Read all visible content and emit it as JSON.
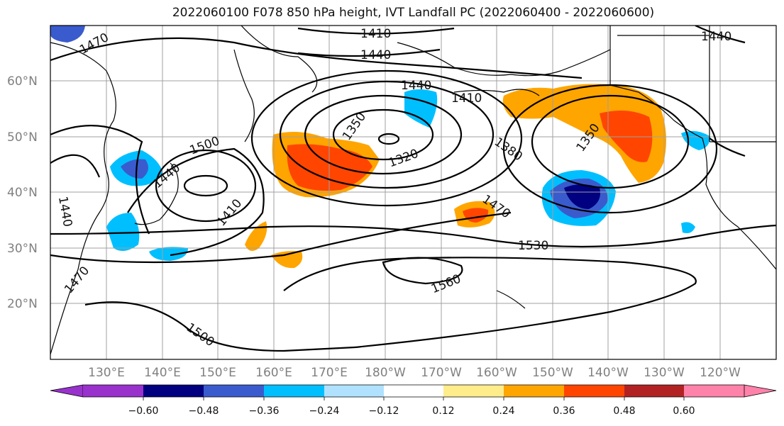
{
  "title": "2022060100 F078 850 hPa height, IVT Landfall PC (2022060400 - 2022060600)",
  "map": {
    "lat_labels": [
      "60°N",
      "50°N",
      "40°N",
      "30°N",
      "20°N"
    ],
    "lon_labels": [
      "130°E",
      "140°E",
      "150°E",
      "160°E",
      "170°E",
      "180°W",
      "170°W",
      "160°W",
      "150°W",
      "140°W",
      "130°W",
      "120°W"
    ],
    "contour_labels": [
      "1470",
      "1410",
      "1440",
      "1440",
      "1440",
      "1410",
      "1350",
      "1320",
      "1500",
      "1440",
      "1410",
      "1380",
      "1350",
      "1470",
      "1530",
      "1560",
      "1470",
      "1500",
      "1440"
    ],
    "colors": {
      "neg_strong": "#000080",
      "neg_mid": "#3858cc",
      "neg_light": "#00bfff",
      "neg_faint": "#b0e0ff",
      "pos_faint": "#fde98a",
      "pos_light": "#ffa500",
      "pos_mid": "#ff4500",
      "pos_strong": "#b22222"
    }
  },
  "colorbar": {
    "ticks": [
      "−0.60",
      "−0.48",
      "−0.36",
      "−0.24",
      "−0.12",
      "0.12",
      "0.24",
      "0.36",
      "0.48",
      "0.60"
    ],
    "colors": [
      "#9932cc",
      "#000080",
      "#3a5bcd",
      "#00bfff",
      "#b0e2ff",
      "#ffffff",
      "#ffec8b",
      "#ffa500",
      "#ff4500",
      "#b22222",
      "#ff82ab"
    ]
  }
}
